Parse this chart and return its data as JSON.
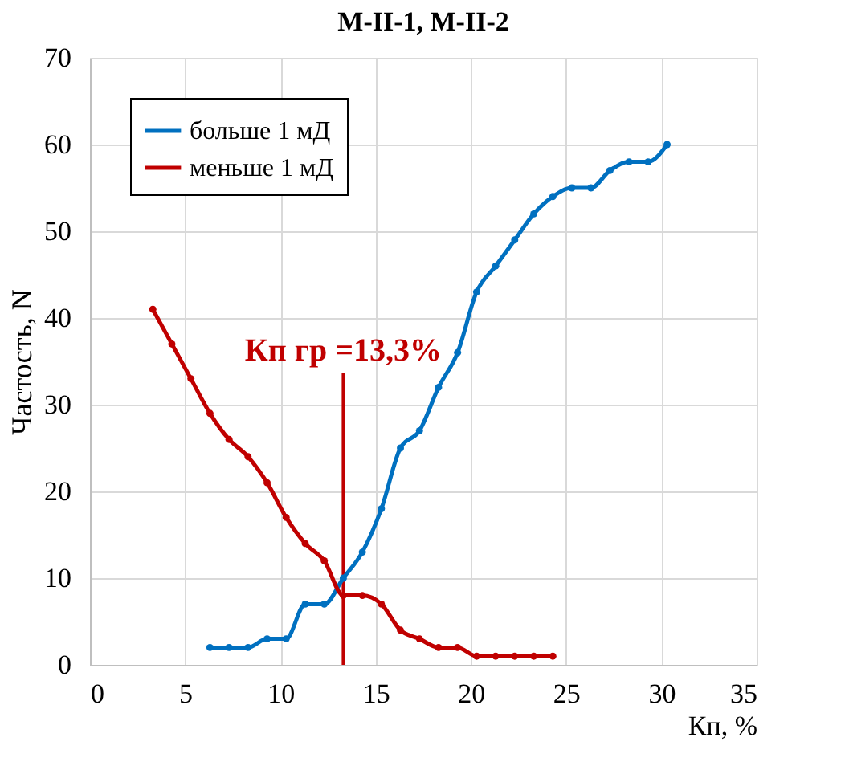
{
  "chart_data": {
    "type": "line",
    "title": "М-II-1, М-II-2",
    "xlabel": "Кп, %",
    "ylabel": "Частость, N",
    "xlim": [
      0,
      35
    ],
    "xticks": [
      0,
      5,
      10,
      15,
      20,
      25,
      30,
      35
    ],
    "ylim": [
      0,
      70
    ],
    "yticks": [
      0,
      10,
      20,
      30,
      40,
      50,
      60,
      70
    ],
    "grid": true,
    "legend": "top left",
    "marker": "circle",
    "line_style": "solid",
    "series": [
      {
        "name": "больше 1 мД",
        "color": "#0070c0",
        "x": [
          6.3,
          7.3,
          8.3,
          9.3,
          10.3,
          11.3,
          12.3,
          13.3,
          14.3,
          15.3,
          16.3,
          17.3,
          18.3,
          19.3,
          20.3,
          21.3,
          22.3,
          23.3,
          24.3,
          25.3,
          26.3,
          27.3,
          28.3,
          29.3,
          30.3
        ],
        "values": [
          2,
          2,
          2,
          3,
          3,
          7,
          7,
          10,
          13,
          18,
          25,
          27,
          32,
          36,
          43,
          46,
          49,
          52,
          54,
          55,
          55,
          57,
          58,
          58,
          60
        ]
      },
      {
        "name": "меньше 1 мД",
        "color": "#c00000",
        "x": [
          3.3,
          4.3,
          5.3,
          6.3,
          7.3,
          8.3,
          9.3,
          10.3,
          11.3,
          12.3,
          13.3,
          14.3,
          15.3,
          16.3,
          17.3,
          18.3,
          19.3,
          20.3,
          21.3,
          22.3,
          23.3,
          24.3
        ],
        "values": [
          41,
          37,
          33,
          29,
          26,
          24,
          21,
          17,
          14,
          12,
          8,
          8,
          7,
          4,
          3,
          2,
          2,
          1,
          1,
          1,
          1,
          1
        ]
      }
    ],
    "ref_lines": [
      {
        "axis": "x",
        "value": 13.3,
        "label": "Кп гр =13,3%",
        "color": "#c00000",
        "line_style": "solid"
      }
    ]
  }
}
